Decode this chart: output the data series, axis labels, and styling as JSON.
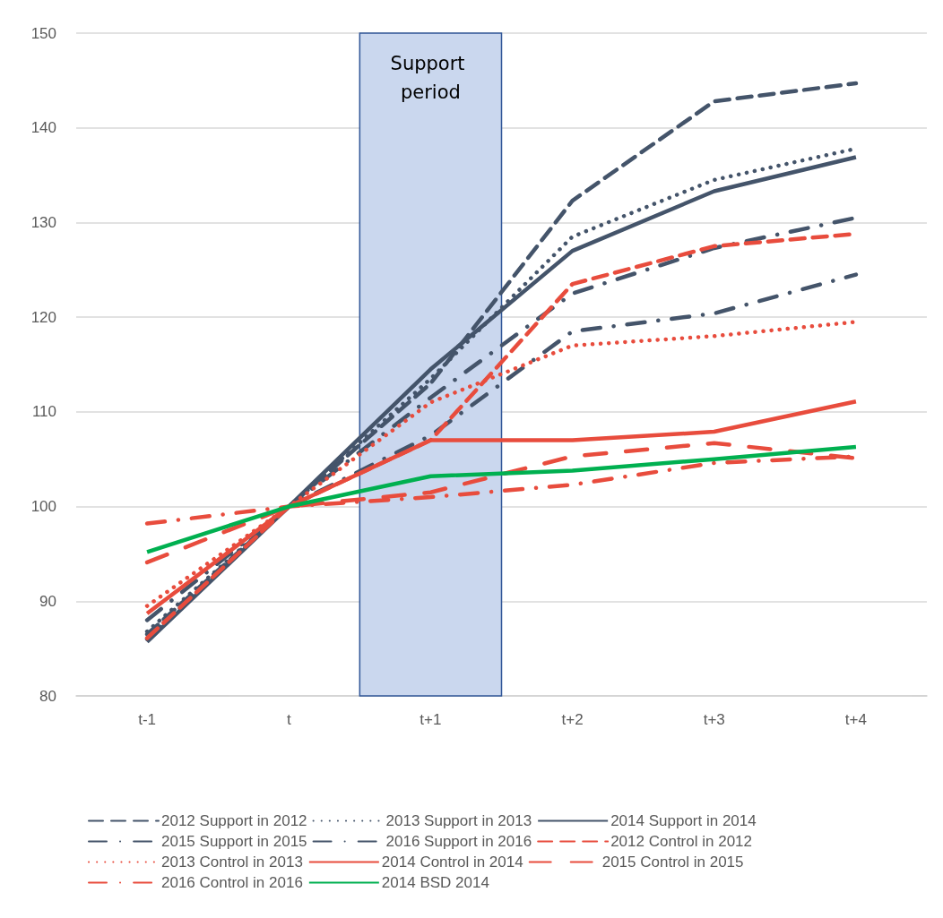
{
  "chart_data": {
    "type": "line",
    "categories": [
      "t-1",
      "t",
      "t+1",
      "t+2",
      "t+3",
      "t+4"
    ],
    "ylim": [
      80,
      150
    ],
    "yticks": [
      80,
      90,
      100,
      110,
      120,
      130,
      140,
      150
    ],
    "grid": "y",
    "legend": "bottom",
    "marker": "none",
    "bands": [
      {
        "axis": "x",
        "from": "t+1",
        "to": "t+1",
        "label": "Support period",
        "color": "#cad7ee"
      }
    ],
    "series": [
      {
        "name": "2012 Support in 2012",
        "color": "#44546a",
        "line_style": "dashed",
        "values": [
          86.5,
          100,
          113,
          132.3,
          142.8,
          144.7
        ]
      },
      {
        "name": "2013 Support in 2013",
        "color": "#44546a",
        "line_style": "dotted",
        "values": [
          86.8,
          100,
          113.5,
          128.5,
          134.5,
          137.8
        ]
      },
      {
        "name": "2014 Support in 2014",
        "color": "#44546a",
        "line_style": "solid",
        "values": [
          85.7,
          100,
          114.5,
          127,
          133.3,
          136.9
        ]
      },
      {
        "name": "2015 Support in 2015",
        "color": "#44546a",
        "line_style": "dashdot",
        "values": [
          88,
          100,
          111.5,
          122.5,
          127.3,
          130.5
        ]
      },
      {
        "name": "2016 Support in 2016",
        "color": "#44546a",
        "line_style": "dashdot",
        "values": [
          86,
          100,
          107.5,
          118.5,
          120.4,
          124.5
        ]
      },
      {
        "name": "2012 Control in 2012",
        "color": "#e84c3d",
        "line_style": "dashed",
        "values": [
          86.1,
          100,
          107,
          123.5,
          127.5,
          128.8
        ]
      },
      {
        "name": "2013 Control in 2013",
        "color": "#e84c3d",
        "line_style": "dotted",
        "values": [
          89.5,
          100,
          111,
          117,
          118,
          119.5
        ]
      },
      {
        "name": "2014 Control in 2014",
        "color": "#e84c3d",
        "line_style": "solid",
        "values": [
          88.7,
          100,
          107,
          107,
          107.9,
          111.1
        ]
      },
      {
        "name": "2015 Control in 2015",
        "color": "#e84c3d",
        "line_style": "longdash",
        "values": [
          94.1,
          100,
          101.5,
          105.3,
          106.7,
          105.1
        ]
      },
      {
        "name": "2016 Control in 2016",
        "color": "#e84c3d",
        "line_style": "dashdot",
        "values": [
          98.2,
          100,
          101,
          102.3,
          104.6,
          105.3
        ]
      },
      {
        "name": "2014 BSD 2014",
        "color": "#00b050",
        "line_style": "solid",
        "values": [
          95.2,
          100,
          103.2,
          103.8,
          105,
          106.3
        ]
      }
    ]
  }
}
